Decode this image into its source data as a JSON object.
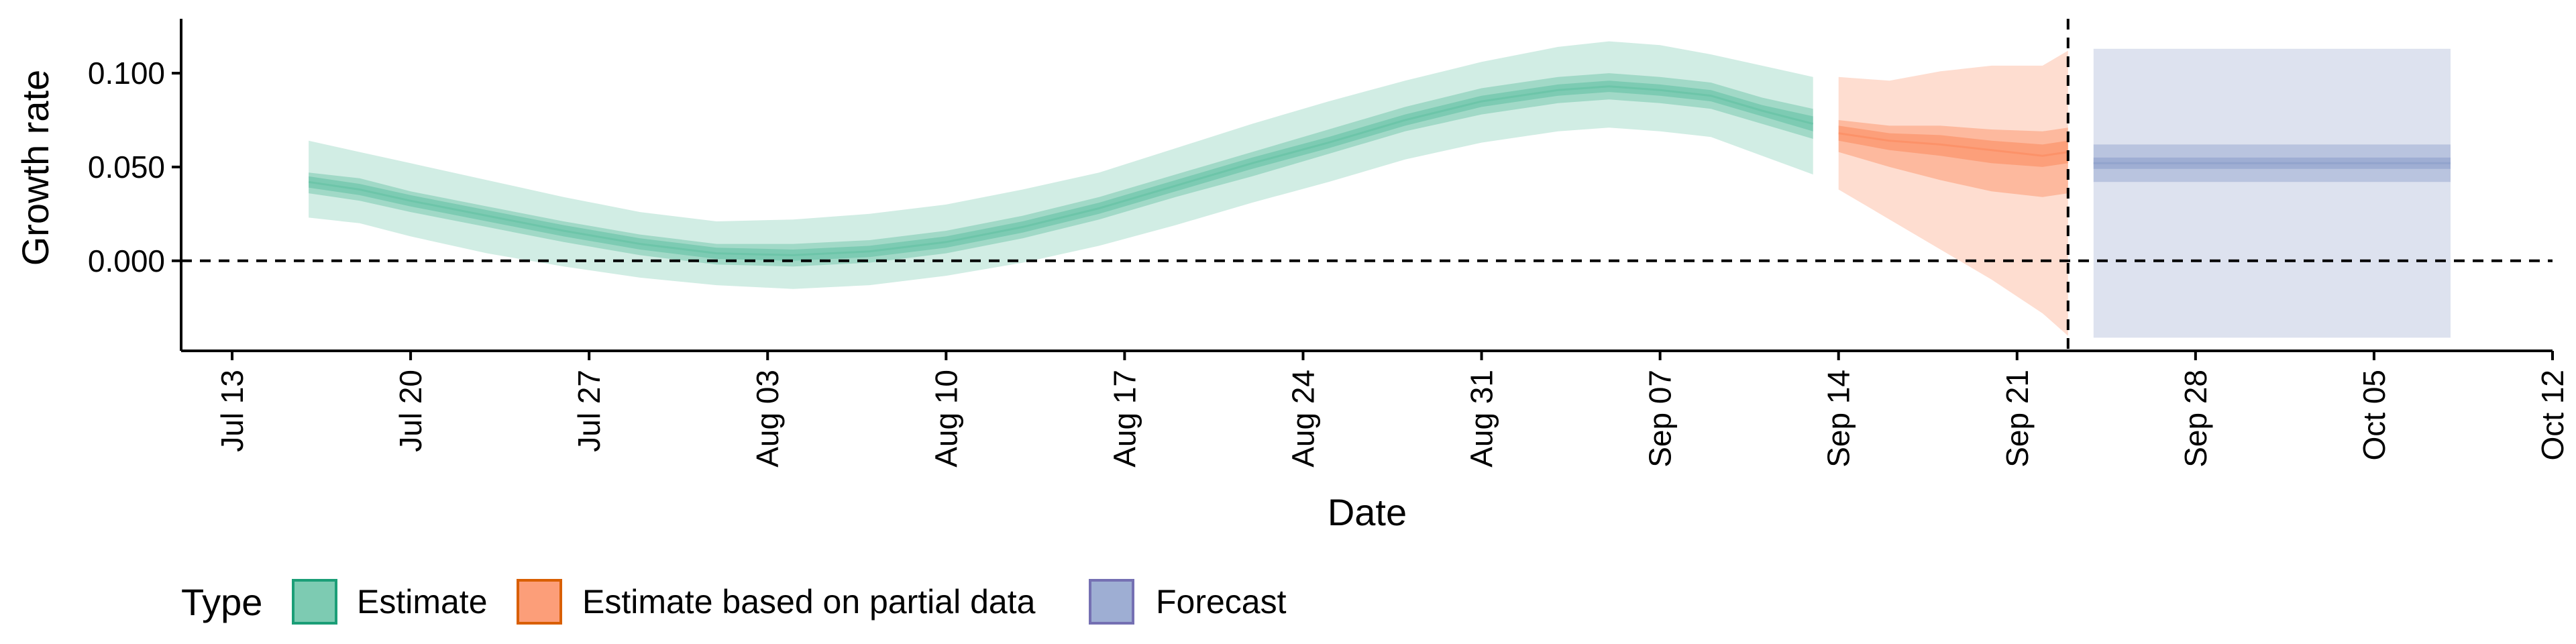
{
  "chart_data": {
    "type": "area",
    "xlabel": "Date",
    "ylabel": "Growth rate",
    "ylim": [
      -0.048,
      0.129
    ],
    "xlim": [
      "2020-07-11",
      "2020-10-12"
    ],
    "x_ticks": [
      {
        "label": "Jul 13",
        "date": "2020-07-13"
      },
      {
        "label": "Jul 20",
        "date": "2020-07-20"
      },
      {
        "label": "Jul 27",
        "date": "2020-07-27"
      },
      {
        "label": "Aug 03",
        "date": "2020-08-03"
      },
      {
        "label": "Aug 10",
        "date": "2020-08-10"
      },
      {
        "label": "Aug 17",
        "date": "2020-08-17"
      },
      {
        "label": "Aug 24",
        "date": "2020-08-24"
      },
      {
        "label": "Aug 31",
        "date": "2020-08-31"
      },
      {
        "label": "Sep 07",
        "date": "2020-09-07"
      },
      {
        "label": "Sep 14",
        "date": "2020-09-14"
      },
      {
        "label": "Sep 21",
        "date": "2020-09-21"
      },
      {
        "label": "Sep 28",
        "date": "2020-09-28"
      },
      {
        "label": "Oct 05",
        "date": "2020-10-05"
      },
      {
        "label": "Oct 12",
        "date": "2020-10-12"
      }
    ],
    "y_ticks": [
      {
        "label": "0.100",
        "value": 0.1
      },
      {
        "label": "0.050",
        "value": 0.05
      },
      {
        "label": "0.000",
        "value": 0.0
      }
    ],
    "reference_lines": {
      "horizontal_y": 0.0,
      "vertical_date": "2020-09-23"
    },
    "legend": {
      "title": "Type",
      "position": "bottom"
    },
    "series": [
      {
        "name": "Estimate",
        "color": "#66c2a5",
        "points": [
          {
            "date": "2020-07-16",
            "median": 0.042,
            "lo50": 0.036,
            "hi50": 0.047,
            "lo20": 0.039,
            "hi20": 0.045,
            "lo90": 0.023,
            "hi90": 0.064
          },
          {
            "date": "2020-07-18",
            "median": 0.038,
            "lo50": 0.032,
            "hi50": 0.044,
            "lo20": 0.035,
            "hi20": 0.041,
            "lo90": 0.02,
            "hi90": 0.058
          },
          {
            "date": "2020-07-20",
            "median": 0.032,
            "lo50": 0.026,
            "hi50": 0.037,
            "lo20": 0.029,
            "hi20": 0.035,
            "lo90": 0.013,
            "hi90": 0.052
          },
          {
            "date": "2020-07-23",
            "median": 0.024,
            "lo50": 0.018,
            "hi50": 0.029,
            "lo20": 0.021,
            "hi20": 0.027,
            "lo90": 0.004,
            "hi90": 0.043
          },
          {
            "date": "2020-07-26",
            "median": 0.016,
            "lo50": 0.01,
            "hi50": 0.021,
            "lo20": 0.013,
            "hi20": 0.019,
            "lo90": -0.003,
            "hi90": 0.034
          },
          {
            "date": "2020-07-29",
            "median": 0.009,
            "lo50": 0.003,
            "hi50": 0.014,
            "lo20": 0.006,
            "hi20": 0.012,
            "lo90": -0.009,
            "hi90": 0.026
          },
          {
            "date": "2020-08-01",
            "median": 0.004,
            "lo50": -0.002,
            "hi50": 0.009,
            "lo20": 0.001,
            "hi20": 0.007,
            "lo90": -0.013,
            "hi90": 0.021
          },
          {
            "date": "2020-08-04",
            "median": 0.003,
            "lo50": -0.003,
            "hi50": 0.009,
            "lo20": 0.0,
            "hi20": 0.006,
            "lo90": -0.015,
            "hi90": 0.022
          },
          {
            "date": "2020-08-07",
            "median": 0.005,
            "lo50": -0.001,
            "hi50": 0.011,
            "lo20": 0.002,
            "hi20": 0.008,
            "lo90": -0.013,
            "hi90": 0.025
          },
          {
            "date": "2020-08-10",
            "median": 0.01,
            "lo50": 0.004,
            "hi50": 0.016,
            "lo20": 0.007,
            "hi20": 0.013,
            "lo90": -0.008,
            "hi90": 0.03
          },
          {
            "date": "2020-08-13",
            "median": 0.018,
            "lo50": 0.012,
            "hi50": 0.024,
            "lo20": 0.015,
            "hi20": 0.021,
            "lo90": -0.001,
            "hi90": 0.038
          },
          {
            "date": "2020-08-16",
            "median": 0.028,
            "lo50": 0.022,
            "hi50": 0.034,
            "lo20": 0.025,
            "hi20": 0.031,
            "lo90": 0.008,
            "hi90": 0.047
          },
          {
            "date": "2020-08-19",
            "median": 0.04,
            "lo50": 0.034,
            "hi50": 0.046,
            "lo20": 0.037,
            "hi20": 0.043,
            "lo90": 0.019,
            "hi90": 0.06
          },
          {
            "date": "2020-08-22",
            "median": 0.052,
            "lo50": 0.045,
            "hi50": 0.058,
            "lo20": 0.049,
            "hi20": 0.055,
            "lo90": 0.031,
            "hi90": 0.073
          },
          {
            "date": "2020-08-25",
            "median": 0.063,
            "lo50": 0.057,
            "hi50": 0.07,
            "lo20": 0.06,
            "hi20": 0.066,
            "lo90": 0.042,
            "hi90": 0.085
          },
          {
            "date": "2020-08-28",
            "median": 0.075,
            "lo50": 0.069,
            "hi50": 0.082,
            "lo20": 0.072,
            "hi20": 0.078,
            "lo90": 0.054,
            "hi90": 0.096
          },
          {
            "date": "2020-08-31",
            "median": 0.085,
            "lo50": 0.078,
            "hi50": 0.092,
            "lo20": 0.082,
            "hi20": 0.088,
            "lo90": 0.063,
            "hi90": 0.106
          },
          {
            "date": "2020-09-03",
            "median": 0.091,
            "lo50": 0.084,
            "hi50": 0.098,
            "lo20": 0.088,
            "hi20": 0.094,
            "lo90": 0.069,
            "hi90": 0.114
          },
          {
            "date": "2020-09-05",
            "median": 0.093,
            "lo50": 0.086,
            "hi50": 0.1,
            "lo20": 0.09,
            "hi20": 0.096,
            "lo90": 0.071,
            "hi90": 0.117
          },
          {
            "date": "2020-09-07",
            "median": 0.091,
            "lo50": 0.084,
            "hi50": 0.098,
            "lo20": 0.088,
            "hi20": 0.094,
            "lo90": 0.069,
            "hi90": 0.115
          },
          {
            "date": "2020-09-09",
            "median": 0.088,
            "lo50": 0.081,
            "hi50": 0.095,
            "lo20": 0.085,
            "hi20": 0.091,
            "lo90": 0.066,
            "hi90": 0.11
          },
          {
            "date": "2020-09-11",
            "median": 0.08,
            "lo50": 0.073,
            "hi50": 0.087,
            "lo20": 0.077,
            "hi20": 0.083,
            "lo90": 0.056,
            "hi90": 0.104
          },
          {
            "date": "2020-09-13",
            "median": 0.073,
            "lo50": 0.065,
            "hi50": 0.081,
            "lo20": 0.069,
            "hi20": 0.077,
            "lo90": 0.046,
            "hi90": 0.098
          }
        ]
      },
      {
        "name": "Estimate based on partial data",
        "color": "#fc8d62",
        "points": [
          {
            "date": "2020-09-14",
            "median": 0.068,
            "lo50": 0.058,
            "hi50": 0.075,
            "lo20": 0.064,
            "hi20": 0.072,
            "lo90": 0.038,
            "hi90": 0.098
          },
          {
            "date": "2020-09-16",
            "median": 0.064,
            "lo50": 0.05,
            "hi50": 0.072,
            "lo20": 0.059,
            "hi20": 0.068,
            "lo90": 0.022,
            "hi90": 0.096
          },
          {
            "date": "2020-09-18",
            "median": 0.062,
            "lo50": 0.043,
            "hi50": 0.072,
            "lo20": 0.056,
            "hi20": 0.067,
            "lo90": 0.006,
            "hi90": 0.101
          },
          {
            "date": "2020-09-20",
            "median": 0.059,
            "lo50": 0.037,
            "hi50": 0.07,
            "lo20": 0.052,
            "hi20": 0.064,
            "lo90": -0.01,
            "hi90": 0.104
          },
          {
            "date": "2020-09-22",
            "median": 0.056,
            "lo50": 0.034,
            "hi50": 0.069,
            "lo20": 0.05,
            "hi20": 0.062,
            "lo90": -0.028,
            "hi90": 0.104
          },
          {
            "date": "2020-09-23",
            "median": 0.058,
            "lo50": 0.036,
            "hi50": 0.071,
            "lo20": 0.052,
            "hi20": 0.064,
            "lo90": -0.04,
            "hi90": 0.112
          }
        ]
      },
      {
        "name": "Forecast",
        "color": "#8da0cb",
        "points": [
          {
            "date": "2020-09-24",
            "median": 0.052,
            "lo50": 0.042,
            "hi50": 0.062,
            "lo20": 0.049,
            "hi20": 0.055,
            "lo90": -0.041,
            "hi90": 0.113
          },
          {
            "date": "2020-10-08",
            "median": 0.052,
            "lo50": 0.042,
            "hi50": 0.062,
            "lo20": 0.049,
            "hi20": 0.055,
            "lo90": -0.041,
            "hi90": 0.113
          }
        ]
      }
    ]
  }
}
